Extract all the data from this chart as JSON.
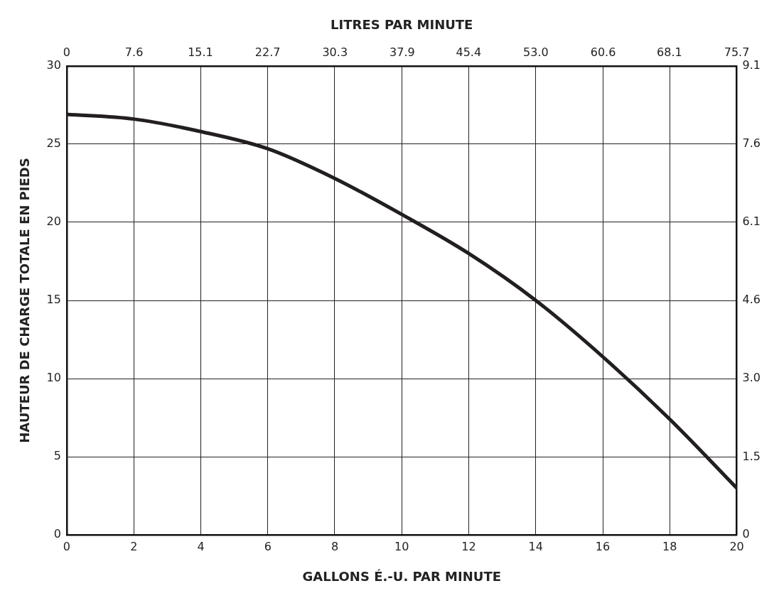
{
  "chart_data": {
    "type": "line",
    "xlabel": "GALLONS É.-U. PAR MINUTE",
    "x2label": "LITRES PAR MINUTE",
    "ylabel": "HAUTEUR DE CHARGE TOTALE EN PIEDS",
    "x": [
      0,
      2,
      4,
      6,
      8,
      10,
      12,
      14,
      16,
      18,
      20
    ],
    "series": [
      {
        "color": "#231f20",
        "values": [
          26.9,
          26.6,
          25.8,
          24.7,
          22.8,
          20.5,
          18.0,
          15.0,
          11.4,
          7.4,
          3.0
        ]
      }
    ],
    "xlim": [
      0,
      20
    ],
    "xticks": [
      0,
      2,
      4,
      6,
      8,
      10,
      12,
      14,
      16,
      18,
      20
    ],
    "ylim": [
      0,
      30
    ],
    "yticks": [
      0,
      5,
      10,
      15,
      20,
      25,
      30
    ],
    "x2lim": [
      0,
      75.7
    ],
    "x2ticks": [
      0,
      7.6,
      15.1,
      22.7,
      30.3,
      37.9,
      45.4,
      {
        "value": 53,
        "label": "53.0"
      },
      60.6,
      68.1,
      75.7
    ],
    "y2lim": [
      0,
      9.14
    ],
    "y2ticks": [
      0,
      {
        "value": 1.52,
        "label": "1.5"
      },
      {
        "value": 3.05,
        "label": "3.0"
      },
      {
        "value": 4.57,
        "label": "4.6"
      },
      6.1,
      {
        "value": 7.62,
        "label": "7.6"
      },
      {
        "value": 9.14,
        "label": "9.1"
      }
    ],
    "grid": true,
    "marker": "none",
    "line_style": "solid",
    "legend": false
  }
}
